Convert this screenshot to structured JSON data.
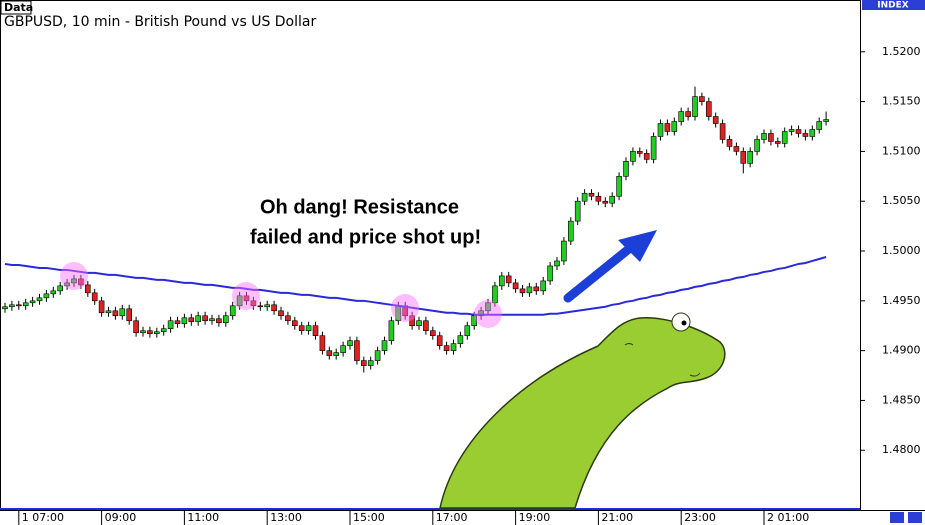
{
  "chart_data": {
    "type": "candlestick",
    "data_label": "Data",
    "title": "GBPUSD, 10 min - British Pound vs US Dollar",
    "axis_label": "INDEX",
    "annotation": [
      "Oh dang! Resistance",
      "failed and price shot up!"
    ],
    "up_color": "#22cc22",
    "down_color": "#dd2222",
    "categories": [
      null,
      null,
      "1 07:00",
      null,
      null,
      null,
      null,
      null,
      null,
      null,
      null,
      null,
      null,
      null,
      "09:00",
      null,
      null,
      null,
      null,
      null,
      null,
      null,
      null,
      null,
      null,
      null,
      "11:00",
      null,
      null,
      null,
      null,
      null,
      null,
      null,
      null,
      null,
      null,
      null,
      "13:00",
      null,
      null,
      null,
      null,
      null,
      null,
      null,
      null,
      null,
      null,
      null,
      "15:00",
      null,
      null,
      null,
      null,
      null,
      null,
      null,
      null,
      null,
      null,
      null,
      "17:00",
      null,
      null,
      null,
      null,
      null,
      null,
      null,
      null,
      null,
      null,
      null,
      "19:00",
      null,
      null,
      null,
      null,
      null,
      null,
      null,
      null,
      null,
      null,
      null,
      "21:00",
      null,
      null,
      null,
      null,
      null,
      null,
      null,
      null,
      null,
      null,
      null,
      "23:00",
      null,
      null,
      null,
      null,
      null,
      null,
      null,
      null,
      null,
      null,
      null,
      "2 01:00",
      null,
      null,
      null,
      null,
      null,
      null,
      null,
      null,
      null
    ],
    "candles": [
      [
        1.4942,
        1.4948,
        1.4938,
        1.4944
      ],
      [
        1.4944,
        1.495,
        1.494,
        1.4946
      ],
      [
        1.4946,
        1.495,
        1.4941,
        1.4945
      ],
      [
        1.4945,
        1.4952,
        1.4941,
        1.4948
      ],
      [
        1.4948,
        1.4954,
        1.4944,
        1.495
      ],
      [
        1.495,
        1.4957,
        1.4946,
        1.4953
      ],
      [
        1.4953,
        1.4961,
        1.4949,
        1.4957
      ],
      [
        1.4957,
        1.4964,
        1.4953,
        1.496
      ],
      [
        1.496,
        1.4969,
        1.4956,
        1.4965
      ],
      [
        1.4965,
        1.4972,
        1.4961,
        1.4968
      ],
      [
        1.4968,
        1.4976,
        1.4964,
        1.4972
      ],
      [
        1.4972,
        1.4976,
        1.4962,
        1.4966
      ],
      [
        1.4966,
        1.497,
        1.4954,
        1.4958
      ],
      [
        1.4958,
        1.4962,
        1.4946,
        1.495
      ],
      [
        1.495,
        1.4954,
        1.4934,
        1.4938
      ],
      [
        1.4938,
        1.4944,
        1.4934,
        1.494
      ],
      [
        1.494,
        1.4944,
        1.4931,
        1.4935
      ],
      [
        1.4935,
        1.4946,
        1.4931,
        1.4942
      ],
      [
        1.4942,
        1.4946,
        1.4926,
        1.493
      ],
      [
        1.493,
        1.4934,
        1.4914,
        1.4918
      ],
      [
        1.4918,
        1.4924,
        1.4914,
        1.492
      ],
      [
        1.492,
        1.4924,
        1.4913,
        1.4917
      ],
      [
        1.4917,
        1.4923,
        1.4913,
        1.4919
      ],
      [
        1.4919,
        1.4926,
        1.4915,
        1.4922
      ],
      [
        1.4922,
        1.4934,
        1.4918,
        1.493
      ],
      [
        1.493,
        1.4934,
        1.4923,
        1.4927
      ],
      [
        1.4927,
        1.4937,
        1.4923,
        1.4933
      ],
      [
        1.4933,
        1.4937,
        1.4925,
        1.4929
      ],
      [
        1.4929,
        1.4939,
        1.4925,
        1.4935
      ],
      [
        1.4935,
        1.4939,
        1.4926,
        1.493
      ],
      [
        1.493,
        1.4936,
        1.4926,
        1.4932
      ],
      [
        1.4932,
        1.4936,
        1.4924,
        1.4928
      ],
      [
        1.4928,
        1.4939,
        1.4924,
        1.4935
      ],
      [
        1.4935,
        1.4949,
        1.4931,
        1.4945
      ],
      [
        1.4945,
        1.4959,
        1.4941,
        1.4955
      ],
      [
        1.4955,
        1.4959,
        1.4946,
        1.495
      ],
      [
        1.495,
        1.4954,
        1.4941,
        1.4945
      ],
      [
        1.4945,
        1.4949,
        1.494,
        1.4944
      ],
      [
        1.4944,
        1.495,
        1.494,
        1.4946
      ],
      [
        1.4946,
        1.495,
        1.4936,
        1.494
      ],
      [
        1.494,
        1.4944,
        1.4931,
        1.4935
      ],
      [
        1.4935,
        1.4939,
        1.4926,
        1.493
      ],
      [
        1.493,
        1.4934,
        1.4921,
        1.4925
      ],
      [
        1.4925,
        1.4929,
        1.4916,
        1.492
      ],
      [
        1.492,
        1.4929,
        1.4916,
        1.4925
      ],
      [
        1.4925,
        1.4929,
        1.4911,
        1.4915
      ],
      [
        1.4915,
        1.4919,
        1.4896,
        1.49
      ],
      [
        1.49,
        1.4904,
        1.4891,
        1.4895
      ],
      [
        1.4895,
        1.4902,
        1.4891,
        1.4898
      ],
      [
        1.4898,
        1.4909,
        1.4894,
        1.4905
      ],
      [
        1.4905,
        1.4914,
        1.4901,
        1.491
      ],
      [
        1.491,
        1.4914,
        1.4886,
        1.489
      ],
      [
        1.489,
        1.4894,
        1.4878,
        1.4885
      ],
      [
        1.4885,
        1.4894,
        1.4881,
        1.489
      ],
      [
        1.489,
        1.4904,
        1.4886,
        1.49
      ],
      [
        1.49,
        1.4914,
        1.4896,
        1.491
      ],
      [
        1.491,
        1.4934,
        1.4906,
        1.493
      ],
      [
        1.493,
        1.4949,
        1.4926,
        1.4945
      ],
      [
        1.4945,
        1.4949,
        1.4931,
        1.4935
      ],
      [
        1.4935,
        1.4939,
        1.4921,
        1.4925
      ],
      [
        1.4925,
        1.4934,
        1.4921,
        1.493
      ],
      [
        1.493,
        1.4934,
        1.4916,
        1.492
      ],
      [
        1.492,
        1.4924,
        1.4911,
        1.4915
      ],
      [
        1.4915,
        1.4919,
        1.4901,
        1.4905
      ],
      [
        1.4905,
        1.4909,
        1.4896,
        1.49
      ],
      [
        1.49,
        1.4911,
        1.4896,
        1.4907
      ],
      [
        1.4907,
        1.4919,
        1.4903,
        1.4915
      ],
      [
        1.4915,
        1.4929,
        1.4911,
        1.4925
      ],
      [
        1.4925,
        1.4939,
        1.4921,
        1.4935
      ],
      [
        1.4935,
        1.4944,
        1.4931,
        1.494
      ],
      [
        1.494,
        1.4952,
        1.4936,
        1.4948
      ],
      [
        1.4948,
        1.4969,
        1.4944,
        1.4965
      ],
      [
        1.4965,
        1.4979,
        1.4961,
        1.4975
      ],
      [
        1.4975,
        1.4979,
        1.4964,
        1.4968
      ],
      [
        1.4968,
        1.4972,
        1.4958,
        1.4962
      ],
      [
        1.4962,
        1.4966,
        1.4954,
        1.4958
      ],
      [
        1.4958,
        1.4968,
        1.4954,
        1.4964
      ],
      [
        1.4964,
        1.4968,
        1.4956,
        1.496
      ],
      [
        1.496,
        1.4974,
        1.4956,
        1.497
      ],
      [
        1.497,
        1.4989,
        1.4966,
        1.4985
      ],
      [
        1.4985,
        1.4994,
        1.4981,
        1.499
      ],
      [
        1.499,
        1.5014,
        1.4986,
        1.501
      ],
      [
        1.501,
        1.5034,
        1.5006,
        1.503
      ],
      [
        1.503,
        1.5054,
        1.5026,
        1.505
      ],
      [
        1.505,
        1.5062,
        1.5046,
        1.5058
      ],
      [
        1.5058,
        1.5062,
        1.5051,
        1.5055
      ],
      [
        1.5055,
        1.5059,
        1.5046,
        1.505
      ],
      [
        1.505,
        1.5054,
        1.5044,
        1.5048
      ],
      [
        1.5048,
        1.5059,
        1.5044,
        1.5055
      ],
      [
        1.5055,
        1.5079,
        1.5051,
        1.5075
      ],
      [
        1.5075,
        1.5094,
        1.5071,
        1.509
      ],
      [
        1.509,
        1.5104,
        1.5086,
        1.51
      ],
      [
        1.51,
        1.5104,
        1.5094,
        1.5098
      ],
      [
        1.5098,
        1.5102,
        1.5088,
        1.5092
      ],
      [
        1.5092,
        1.5119,
        1.5088,
        1.5115
      ],
      [
        1.5115,
        1.5132,
        1.5111,
        1.5128
      ],
      [
        1.5128,
        1.5132,
        1.5116,
        1.512
      ],
      [
        1.512,
        1.5134,
        1.5116,
        1.513
      ],
      [
        1.513,
        1.5144,
        1.5126,
        1.514
      ],
      [
        1.514,
        1.5144,
        1.5131,
        1.5135
      ],
      [
        1.5135,
        1.5165,
        1.5131,
        1.5155
      ],
      [
        1.5155,
        1.5159,
        1.5146,
        1.515
      ],
      [
        1.515,
        1.5154,
        1.5131,
        1.5135
      ],
      [
        1.5135,
        1.5139,
        1.5124,
        1.5128
      ],
      [
        1.5128,
        1.5132,
        1.5108,
        1.5112
      ],
      [
        1.5112,
        1.5116,
        1.5101,
        1.5105
      ],
      [
        1.5105,
        1.5109,
        1.5096,
        1.51
      ],
      [
        1.51,
        1.5104,
        1.5078,
        1.5088
      ],
      [
        1.5088,
        1.5104,
        1.5084,
        1.51
      ],
      [
        1.51,
        1.5116,
        1.5096,
        1.5112
      ],
      [
        1.5112,
        1.5122,
        1.5108,
        1.5118
      ],
      [
        1.5118,
        1.5122,
        1.5106,
        1.511
      ],
      [
        1.511,
        1.5114,
        1.5104,
        1.5108
      ],
      [
        1.5108,
        1.5124,
        1.5104,
        1.512
      ],
      [
        1.512,
        1.5126,
        1.5116,
        1.5122
      ],
      [
        1.5122,
        1.5126,
        1.5114,
        1.5118
      ],
      [
        1.5118,
        1.5122,
        1.5111,
        1.5115
      ],
      [
        1.5115,
        1.5126,
        1.5111,
        1.5122
      ],
      [
        1.5122,
        1.5134,
        1.5118,
        1.513
      ],
      [
        1.513,
        1.514,
        1.5126,
        1.5132
      ]
    ],
    "moving_average": {
      "color": "#2a2ad8",
      "values": [
        1.4987,
        1.4986,
        1.4986,
        1.4985,
        1.4984,
        1.4983,
        1.4983,
        1.4982,
        1.4981,
        1.4981,
        1.498,
        1.4979,
        1.4978,
        1.4978,
        1.4977,
        1.4976,
        1.4976,
        1.4975,
        1.4974,
        1.4973,
        1.4973,
        1.4972,
        1.4971,
        1.4971,
        1.497,
        1.4969,
        1.4968,
        1.4968,
        1.4967,
        1.4966,
        1.4966,
        1.4965,
        1.4964,
        1.4963,
        1.4963,
        1.4962,
        1.4961,
        1.4961,
        1.496,
        1.4959,
        1.4958,
        1.4958,
        1.4957,
        1.4956,
        1.4956,
        1.4955,
        1.4954,
        1.4953,
        1.4953,
        1.4952,
        1.4951,
        1.495,
        1.495,
        1.4949,
        1.4948,
        1.4947,
        1.4946,
        1.4945,
        1.4944,
        1.4943,
        1.4942,
        1.4941,
        1.494,
        1.4939,
        1.4938,
        1.4938,
        1.4937,
        1.4937,
        1.4936,
        1.4936,
        1.4936,
        1.4936,
        1.4936,
        1.4936,
        1.4936,
        1.4936,
        1.4936,
        1.4936,
        1.4936,
        1.4937,
        1.4937,
        1.4938,
        1.4939,
        1.494,
        1.4941,
        1.4942,
        1.4943,
        1.4944,
        1.4946,
        1.4947,
        1.4949,
        1.495,
        1.4952,
        1.4953,
        1.4955,
        1.4956,
        1.4958,
        1.4959,
        1.4961,
        1.4962,
        1.4964,
        1.4965,
        1.4967,
        1.4968,
        1.497,
        1.4971,
        1.4973,
        1.4974,
        1.4976,
        1.4977,
        1.4979,
        1.498,
        1.4982,
        1.4983,
        1.4985,
        1.4987,
        1.4988,
        1.499,
        1.4992,
        1.4994
      ]
    },
    "ylim": [
      1.474,
      1.5252
    ],
    "yticks": [
      {
        "value": 1.48,
        "label": "1.4800"
      },
      {
        "value": 1.485,
        "label": "1.4850"
      },
      {
        "value": 1.49,
        "label": "1.4900"
      },
      {
        "value": 1.495,
        "label": "1.4950"
      },
      {
        "value": 1.5,
        "label": "1.5000"
      },
      {
        "value": 1.505,
        "label": "1.5050"
      },
      {
        "value": 1.51,
        "label": "1.5100"
      },
      {
        "value": 1.515,
        "label": "1.5150"
      },
      {
        "value": 1.52,
        "label": "1.5200"
      }
    ],
    "grid": false
  }
}
